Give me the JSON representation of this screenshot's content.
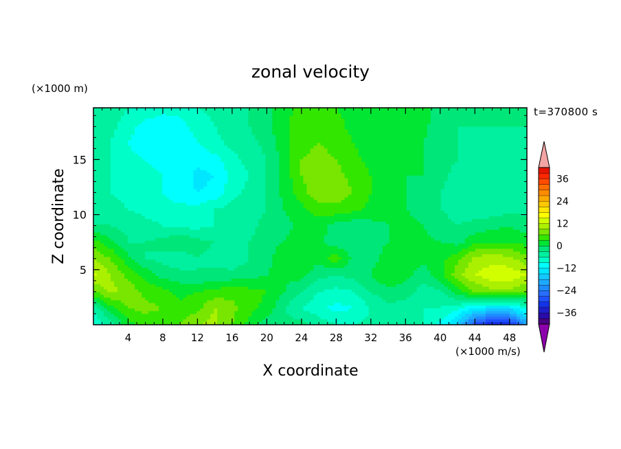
{
  "chart_data": {
    "type": "heatmap",
    "title": "zonal velocity",
    "xlabel": "X coordinate",
    "ylabel": "Z coordinate",
    "x_unit": "(×1000 m/s)",
    "y_unit": "(×1000 m)",
    "time_label": "t=370800 s",
    "xlim": [
      0,
      50
    ],
    "ylim": [
      0,
      19.7
    ],
    "x_ticks": [
      4,
      8,
      12,
      16,
      20,
      24,
      28,
      32,
      36,
      40,
      44,
      48
    ],
    "y_ticks": [
      5,
      10,
      15
    ],
    "colorbar": {
      "levels": [
        -42,
        -39,
        -36,
        -33,
        -30,
        -27,
        -24,
        -21,
        -18,
        -15,
        -12,
        -9,
        -6,
        -3,
        0,
        3,
        6,
        9,
        12,
        15,
        18,
        21,
        24,
        27,
        30,
        33,
        36,
        39,
        42
      ],
      "tick_labels": [
        -36,
        -24,
        -12,
        0,
        12,
        24,
        36
      ],
      "colors": [
        "#4b0082",
        "#2a0aa8",
        "#1e1ec8",
        "#1432e6",
        "#1e50ff",
        "#286eff",
        "#1e8cff",
        "#1eaaff",
        "#14c8ff",
        "#00e6ff",
        "#00ffff",
        "#00ffc8",
        "#00f0a0",
        "#00e678",
        "#00e632",
        "#32e600",
        "#78e600",
        "#aaf000",
        "#d2ff00",
        "#ffff00",
        "#ffe600",
        "#ffc800",
        "#ffaa00",
        "#ff8c00",
        "#ff6e00",
        "#ff4b00",
        "#ff2800",
        "#e61400"
      ],
      "under_color": "#8b00aa",
      "over_color": "#f4a4a4"
    },
    "field": {
      "description_of_values": "approximate zonal velocity sampled on grid",
      "x_values": [
        0,
        2,
        4,
        6,
        8,
        10,
        12,
        14,
        16,
        18,
        20,
        22,
        24,
        26,
        28,
        30,
        32,
        34,
        36,
        38,
        40,
        42,
        44,
        46,
        48,
        50
      ],
      "z_values": [
        0,
        1.5,
        3,
        4.5,
        6,
        7.5,
        9,
        10.5,
        12,
        13.5,
        15,
        16.5,
        18,
        19.7
      ],
      "values": [
        [
          -8,
          -5,
          2,
          4,
          3,
          6,
          9,
          10,
          6,
          2,
          -2,
          -2,
          -2,
          -4,
          -6,
          -6,
          -5,
          -4,
          -6,
          -6,
          -10,
          -16,
          -28,
          -34,
          -32,
          -20
        ],
        [
          -6,
          2,
          6,
          7,
          6,
          4,
          5,
          9,
          7,
          4,
          2,
          -3,
          -6,
          -8,
          -10,
          -9,
          -6,
          -4,
          -4,
          -6,
          -6,
          -8,
          -12,
          -14,
          -14,
          -8
        ],
        [
          6,
          10,
          8,
          5,
          4,
          2,
          3,
          4,
          5,
          4,
          3,
          0,
          -3,
          -6,
          -7,
          -6,
          -3,
          -1,
          -2,
          -4,
          -4,
          2,
          6,
          8,
          8,
          6
        ],
        [
          13,
          9,
          5,
          2,
          -1,
          -2,
          -3,
          -2,
          -2,
          -1,
          0,
          1,
          1,
          -2,
          -3,
          -2,
          0,
          3,
          1,
          -2,
          2,
          8,
          12,
          14,
          14,
          12
        ],
        [
          9,
          6,
          1,
          -3,
          -4,
          -5,
          -3,
          -4,
          -5,
          -3,
          -1,
          2,
          2,
          1,
          5,
          -1,
          -1,
          1,
          2,
          1,
          2,
          5,
          10,
          11,
          10,
          7
        ],
        [
          4,
          1,
          -3,
          -3,
          -2,
          0,
          -2,
          -3,
          -4,
          -3,
          -1,
          0,
          2,
          1,
          -2,
          -3,
          -1,
          0,
          1,
          1,
          0,
          -1,
          2,
          3,
          3,
          2
        ],
        [
          -3,
          -3,
          -4,
          -5,
          -6,
          -7,
          -7,
          -6,
          -5,
          -4,
          -2,
          -1,
          1,
          1,
          -1,
          -2,
          -1,
          0,
          1,
          0,
          -2,
          -3,
          -2,
          -1,
          0,
          -2
        ],
        [
          -4,
          -5,
          -6,
          -7,
          -8,
          -8,
          -8,
          -6,
          -5,
          -4,
          -3,
          0,
          2,
          5,
          5,
          4,
          2,
          1,
          0,
          -1,
          -3,
          -4,
          -5,
          -5,
          -4,
          -4
        ],
        [
          -5,
          -6,
          -7,
          -8,
          -9,
          -11,
          -12,
          -11,
          -7,
          -5,
          -3,
          1,
          5,
          8,
          8,
          6,
          3,
          1,
          0,
          -1,
          -3,
          -5,
          -6,
          -6,
          -5,
          -5
        ],
        [
          -5,
          -6,
          -7,
          -8,
          -9,
          -10,
          -13,
          -12,
          -8,
          -6,
          -3,
          1,
          6,
          8,
          7,
          5,
          3,
          1,
          0,
          0,
          -2,
          -4,
          -5,
          -5,
          -5,
          -4
        ],
        [
          -5,
          -6,
          -8,
          -9,
          -10,
          -10,
          -11,
          -10,
          -7,
          -5,
          -3,
          1,
          6,
          7,
          6,
          4,
          2,
          1,
          0,
          0,
          -2,
          -3,
          -4,
          -4,
          -4,
          -4
        ],
        [
          -4,
          -6,
          -9,
          -11,
          -12,
          -11,
          -9,
          -7,
          -5,
          -4,
          -2,
          2,
          5,
          6,
          5,
          3,
          1,
          0,
          0,
          0,
          -2,
          -3,
          -4,
          -4,
          -4,
          -4
        ],
        [
          -3,
          -5,
          -8,
          -10,
          -11,
          -10,
          -8,
          -6,
          -4,
          -3,
          -1,
          2,
          5,
          5,
          4,
          2,
          1,
          0,
          0,
          1,
          -2,
          -3,
          -3,
          -3,
          -3,
          -3
        ],
        [
          -3,
          -4,
          -6,
          -7,
          -8,
          -8,
          -6,
          -5,
          -4,
          -3,
          -1,
          2,
          4,
          4,
          3,
          2,
          1,
          0,
          0,
          1,
          -1,
          -2,
          -2,
          -2,
          -2,
          -2
        ]
      ]
    }
  }
}
